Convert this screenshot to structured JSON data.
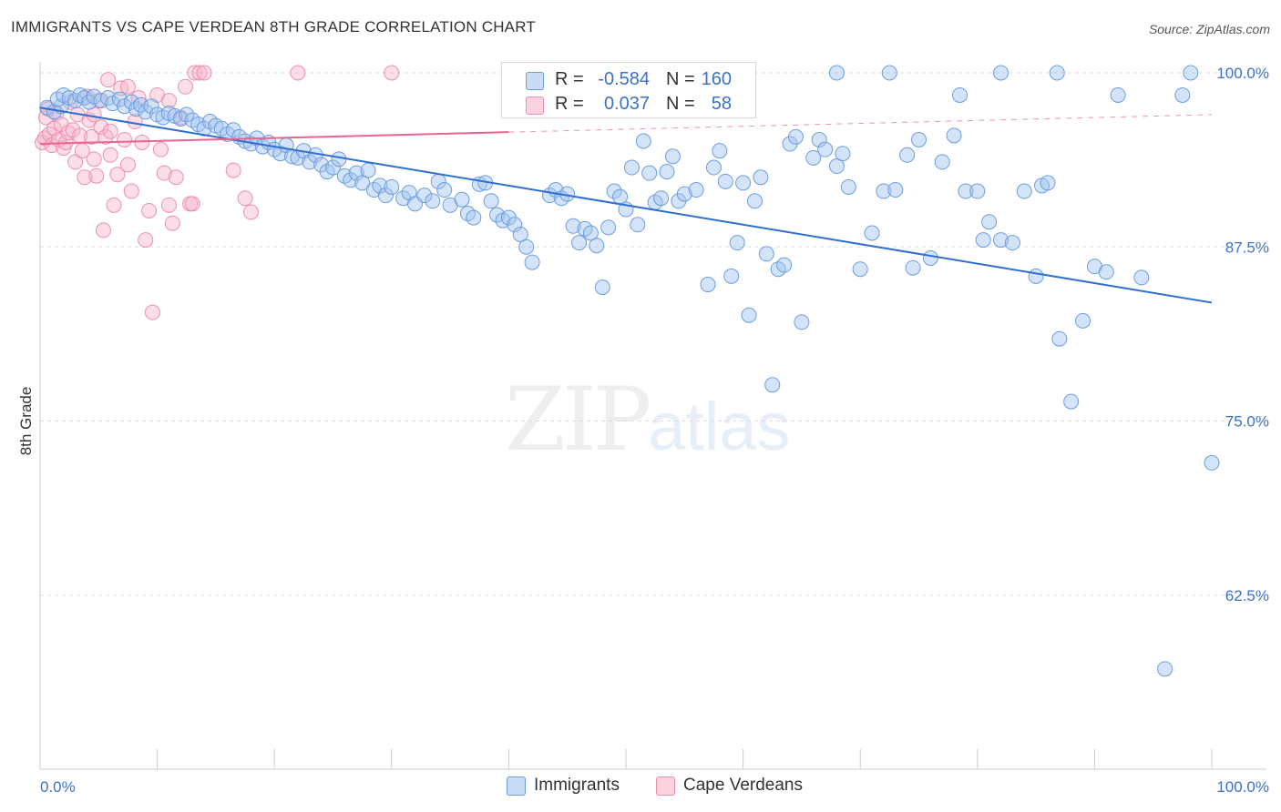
{
  "header": {
    "title": "IMMIGRANTS VS CAPE VERDEAN 8TH GRADE CORRELATION CHART",
    "source": "Source: ZipAtlas.com"
  },
  "watermark": {
    "zip": "ZIP",
    "atlas": "atlas"
  },
  "legend_top": {
    "rows": [
      {
        "r_label": "R =",
        "r_value": "-0.584",
        "n_label": "N =",
        "n_value": "160",
        "color": "#a9c8f2"
      },
      {
        "r_label": "R =",
        "r_value": "0.037",
        "n_label": "N =",
        "n_value": "58",
        "color": "#f7b6c9"
      }
    ]
  },
  "legend_bottom": {
    "items": [
      {
        "label": "Immigrants",
        "color": "#a9c8f2"
      },
      {
        "label": "Cape Verdeans",
        "color": "#f7b6c9"
      }
    ]
  },
  "colors": {
    "immigrants_fill": "rgba(160,195,240,0.45)",
    "immigrants_stroke": "#6d9de0",
    "immigrants_line": "#2f6fcf",
    "cape_fill": "rgba(247,182,201,0.45)",
    "cape_stroke": "#ee8fae",
    "cape_line": "#e8658f",
    "tick_label": "#3b72c9",
    "grid": "#dddddd"
  },
  "chart_data": {
    "type": "scatter",
    "title": "IMMIGRANTS VS CAPE VERDEAN 8TH GRADE CORRELATION CHART",
    "xlabel": "",
    "ylabel": "8th Grade",
    "xlim": [
      0,
      100
    ],
    "ylim": [
      50,
      100
    ],
    "x_tick_labels": [
      "0.0%",
      "100.0%"
    ],
    "y_ticks": [
      62.5,
      75.0,
      87.5,
      100.0
    ],
    "y_tick_labels": [
      "62.5%",
      "75.0%",
      "87.5%",
      "100.0%"
    ],
    "grid": "horizontal dashed",
    "legend_position": "top-center",
    "series": [
      {
        "name": "Immigrants",
        "r": -0.584,
        "n": 160,
        "trend": {
          "x": [
            0,
            100
          ],
          "y": [
            97.5,
            83.5
          ]
        },
        "points": [
          [
            0.6,
            97.5
          ],
          [
            1.2,
            97.2
          ],
          [
            1.8,
            97.6
          ],
          [
            1.5,
            98.1
          ],
          [
            2.0,
            98.4
          ],
          [
            2.5,
            98.2
          ],
          [
            3.0,
            98.0
          ],
          [
            3.4,
            98.4
          ],
          [
            3.8,
            98.2
          ],
          [
            4.2,
            97.9
          ],
          [
            4.6,
            98.3
          ],
          [
            5.2,
            98.0
          ],
          [
            5.8,
            98.2
          ],
          [
            6.2,
            97.8
          ],
          [
            6.8,
            98.1
          ],
          [
            7.2,
            97.6
          ],
          [
            7.8,
            97.9
          ],
          [
            8.2,
            97.4
          ],
          [
            8.6,
            97.7
          ],
          [
            9.0,
            97.2
          ],
          [
            9.5,
            97.6
          ],
          [
            10.0,
            97.0
          ],
          [
            10.5,
            96.8
          ],
          [
            11.0,
            97.1
          ],
          [
            11.5,
            96.9
          ],
          [
            12.0,
            96.7
          ],
          [
            12.5,
            97.0
          ],
          [
            13.0,
            96.6
          ],
          [
            13.5,
            96.3
          ],
          [
            14.0,
            96.0
          ],
          [
            14.5,
            96.5
          ],
          [
            15.0,
            96.2
          ],
          [
            15.5,
            96.0
          ],
          [
            16.0,
            95.6
          ],
          [
            16.5,
            95.9
          ],
          [
            17.0,
            95.4
          ],
          [
            17.5,
            95.1
          ],
          [
            18.0,
            94.9
          ],
          [
            18.5,
            95.3
          ],
          [
            19.0,
            94.7
          ],
          [
            19.5,
            95.0
          ],
          [
            20.0,
            94.5
          ],
          [
            20.5,
            94.2
          ],
          [
            21.0,
            94.8
          ],
          [
            21.5,
            94.0
          ],
          [
            22.0,
            93.9
          ],
          [
            22.5,
            94.4
          ],
          [
            23.0,
            93.6
          ],
          [
            23.5,
            94.1
          ],
          [
            24.0,
            93.4
          ],
          [
            24.5,
            92.9
          ],
          [
            25.0,
            93.2
          ],
          [
            25.5,
            93.8
          ],
          [
            26.0,
            92.6
          ],
          [
            26.5,
            92.3
          ],
          [
            27.0,
            92.8
          ],
          [
            27.5,
            92.1
          ],
          [
            28.0,
            93.0
          ],
          [
            28.5,
            91.6
          ],
          [
            29.0,
            91.9
          ],
          [
            29.5,
            91.2
          ],
          [
            30.0,
            91.8
          ],
          [
            31.0,
            91.0
          ],
          [
            31.5,
            91.4
          ],
          [
            32.0,
            90.6
          ],
          [
            32.8,
            91.2
          ],
          [
            33.5,
            90.8
          ],
          [
            34.0,
            92.2
          ],
          [
            34.5,
            91.6
          ],
          [
            35.0,
            90.5
          ],
          [
            36.0,
            90.9
          ],
          [
            36.5,
            89.9
          ],
          [
            37.0,
            89.6
          ],
          [
            37.5,
            92.0
          ],
          [
            38.0,
            92.1
          ],
          [
            38.5,
            90.8
          ],
          [
            39.0,
            89.8
          ],
          [
            39.5,
            89.4
          ],
          [
            40.0,
            89.6
          ],
          [
            40.5,
            89.1
          ],
          [
            41.0,
            88.4
          ],
          [
            41.5,
            87.5
          ],
          [
            42.0,
            86.4
          ],
          [
            43.5,
            91.2
          ],
          [
            44.0,
            91.6
          ],
          [
            44.5,
            91.0
          ],
          [
            45.0,
            91.3
          ],
          [
            45.5,
            89.0
          ],
          [
            46.0,
            87.8
          ],
          [
            46.5,
            88.8
          ],
          [
            47.0,
            88.5
          ],
          [
            47.5,
            87.6
          ],
          [
            48.0,
            84.6
          ],
          [
            48.5,
            88.9
          ],
          [
            49.0,
            91.5
          ],
          [
            49.5,
            91.1
          ],
          [
            50.0,
            90.2
          ],
          [
            50.5,
            93.2
          ],
          [
            51.0,
            89.1
          ],
          [
            51.5,
            95.1
          ],
          [
            52.0,
            92.8
          ],
          [
            52.5,
            90.7
          ],
          [
            53.0,
            91.0
          ],
          [
            53.5,
            92.9
          ],
          [
            54.0,
            94.0
          ],
          [
            54.5,
            90.8
          ],
          [
            55.0,
            91.3
          ],
          [
            56.0,
            91.6
          ],
          [
            57.0,
            84.8
          ],
          [
            57.5,
            93.2
          ],
          [
            58.0,
            94.4
          ],
          [
            58.5,
            92.2
          ],
          [
            59.0,
            85.4
          ],
          [
            59.5,
            87.8
          ],
          [
            60.0,
            92.1
          ],
          [
            60.5,
            82.6
          ],
          [
            61.0,
            90.8
          ],
          [
            61.5,
            92.5
          ],
          [
            62.0,
            87.0
          ],
          [
            62.5,
            77.6
          ],
          [
            63.0,
            85.9
          ],
          [
            63.5,
            86.2
          ],
          [
            64.0,
            94.9
          ],
          [
            64.5,
            95.4
          ],
          [
            65.0,
            82.1
          ],
          [
            66.0,
            93.9
          ],
          [
            66.5,
            95.2
          ],
          [
            67.0,
            94.5
          ],
          [
            68.0,
            93.3
          ],
          [
            68.5,
            94.2
          ],
          [
            69.0,
            91.8
          ],
          [
            70.0,
            85.9
          ],
          [
            71.0,
            88.5
          ],
          [
            72.0,
            91.5
          ],
          [
            73.0,
            91.6
          ],
          [
            74.0,
            94.1
          ],
          [
            74.5,
            86.0
          ],
          [
            75.0,
            95.2
          ],
          [
            76.0,
            86.7
          ],
          [
            77.0,
            93.6
          ],
          [
            78.0,
            95.5
          ],
          [
            78.5,
            98.4
          ],
          [
            79.0,
            91.5
          ],
          [
            80.0,
            91.5
          ],
          [
            80.5,
            88.0
          ],
          [
            81.0,
            89.3
          ],
          [
            82.0,
            88.0
          ],
          [
            83.0,
            87.8
          ],
          [
            84.0,
            91.5
          ],
          [
            85.0,
            85.4
          ],
          [
            85.5,
            91.9
          ],
          [
            86.0,
            92.1
          ],
          [
            87.0,
            80.9
          ],
          [
            88.0,
            76.4
          ],
          [
            89.0,
            82.2
          ],
          [
            90.0,
            86.1
          ],
          [
            91.0,
            85.7
          ],
          [
            92.0,
            98.4
          ],
          [
            94.0,
            85.3
          ],
          [
            96.0,
            57.2
          ],
          [
            97.5,
            98.4
          ],
          [
            100.0,
            72.0
          ],
          [
            68.0,
            100.0
          ],
          [
            72.5,
            100.0
          ],
          [
            82.0,
            100.0
          ],
          [
            86.8,
            100.0
          ],
          [
            98.2,
            100.0
          ]
        ]
      },
      {
        "name": "Cape Verdeans",
        "r": 0.037,
        "n": 58,
        "trend": {
          "x": [
            0,
            100
          ],
          "y": [
            94.9,
            97.0
          ]
        },
        "trend_solid_until": 40,
        "points": [
          [
            0.2,
            95.0
          ],
          [
            0.4,
            95.3
          ],
          [
            0.5,
            96.8
          ],
          [
            0.7,
            97.4
          ],
          [
            0.8,
            95.6
          ],
          [
            1.0,
            94.8
          ],
          [
            1.2,
            96.0
          ],
          [
            1.4,
            97.1
          ],
          [
            1.6,
            95.2
          ],
          [
            1.8,
            96.3
          ],
          [
            2.0,
            94.6
          ],
          [
            2.2,
            95.0
          ],
          [
            2.4,
            95.7
          ],
          [
            2.6,
            97.9
          ],
          [
            2.8,
            95.9
          ],
          [
            3.0,
            93.6
          ],
          [
            3.2,
            97.0
          ],
          [
            3.4,
            95.5
          ],
          [
            3.6,
            94.4
          ],
          [
            3.8,
            92.5
          ],
          [
            4.0,
            98.3
          ],
          [
            4.2,
            96.6
          ],
          [
            4.4,
            95.4
          ],
          [
            4.6,
            93.8
          ],
          [
            4.8,
            92.6
          ],
          [
            5.0,
            98.0
          ],
          [
            5.2,
            96.1
          ],
          [
            5.4,
            88.7
          ],
          [
            5.6,
            95.4
          ],
          [
            5.8,
            99.5
          ],
          [
            6.0,
            94.1
          ],
          [
            6.3,
            90.5
          ],
          [
            6.6,
            92.7
          ],
          [
            6.9,
            98.9
          ],
          [
            7.2,
            95.2
          ],
          [
            7.5,
            93.4
          ],
          [
            7.8,
            91.5
          ],
          [
            8.1,
            96.5
          ],
          [
            8.4,
            98.2
          ],
          [
            8.7,
            95.0
          ],
          [
            9.0,
            88.0
          ],
          [
            9.3,
            90.1
          ],
          [
            9.6,
            82.8
          ],
          [
            10.0,
            98.4
          ],
          [
            10.3,
            94.5
          ],
          [
            10.6,
            92.8
          ],
          [
            11.0,
            90.5
          ],
          [
            11.3,
            89.2
          ],
          [
            11.6,
            92.5
          ],
          [
            12.0,
            96.8
          ],
          [
            12.4,
            99.0
          ],
          [
            12.8,
            90.6
          ],
          [
            13.2,
            100.0
          ],
          [
            13.6,
            100.0
          ],
          [
            14.0,
            100.0
          ],
          [
            16.5,
            93.0
          ],
          [
            17.5,
            91.0
          ],
          [
            18.0,
            90.0
          ],
          [
            22.0,
            100.0
          ],
          [
            30.0,
            100.0
          ],
          [
            7.5,
            99.0
          ],
          [
            11.0,
            98.0
          ],
          [
            13.0,
            90.6
          ],
          [
            6.0,
            95.8
          ],
          [
            4.6,
            97.0
          ]
        ]
      }
    ]
  }
}
